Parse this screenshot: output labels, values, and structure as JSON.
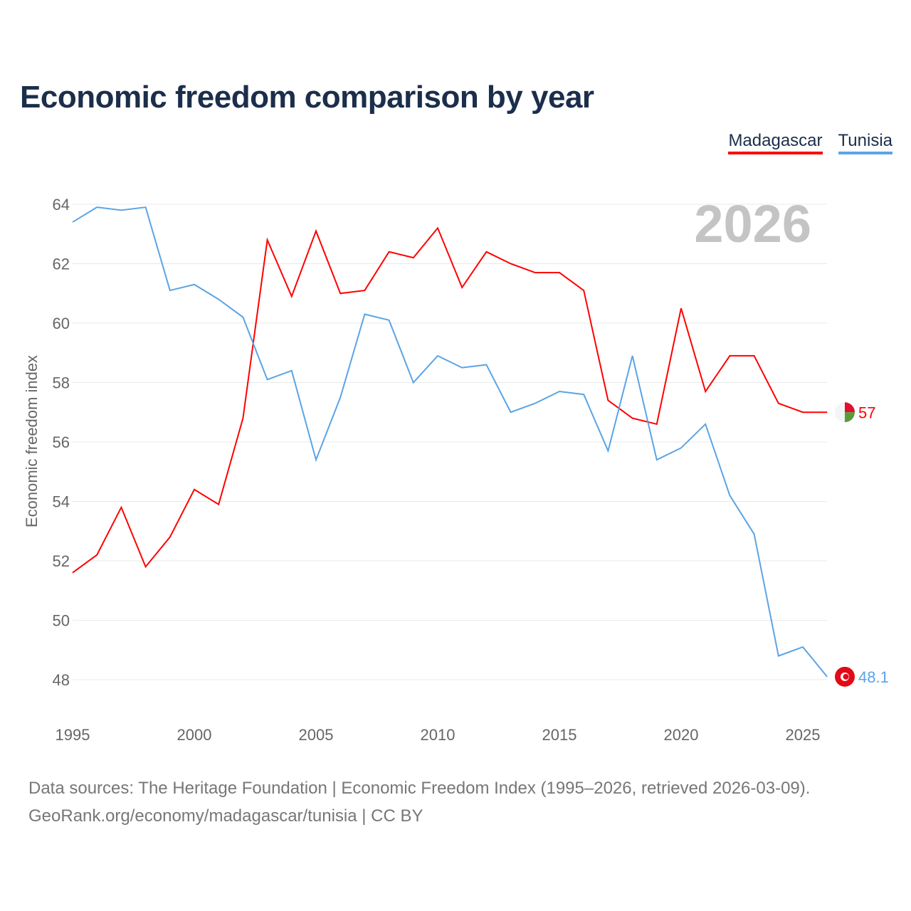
{
  "title": "Economic freedom comparison by year",
  "source_line1": "Data sources: The Heritage Foundation | Economic Freedom Index (1995–2026, retrieved 2026-03-09).",
  "source_line2": "GeoRank.org/economy/madagascar/tunisia | CC BY",
  "chart_data": {
    "type": "line",
    "title": "Economic freedom comparison by year",
    "ylabel": "Economic freedom index",
    "xlabel": "",
    "year_label": "2026",
    "xlim": [
      1995,
      2026
    ],
    "ylim": [
      47,
      64.5
    ],
    "xticks": [
      "1995",
      "2000",
      "2005",
      "2010",
      "2015",
      "2020",
      "2025"
    ],
    "yticks": [
      "48",
      "50",
      "52",
      "54",
      "56",
      "58",
      "60",
      "62",
      "64"
    ],
    "grid": true,
    "legend_position": "top-right",
    "x": [
      1995,
      1996,
      1997,
      1998,
      1999,
      2000,
      2001,
      2002,
      2003,
      2004,
      2005,
      2006,
      2007,
      2008,
      2009,
      2010,
      2011,
      2012,
      2013,
      2014,
      2015,
      2016,
      2017,
      2018,
      2019,
      2020,
      2021,
      2022,
      2023,
      2024,
      2025,
      2026
    ],
    "series": [
      {
        "name": "Madagascar",
        "color": "#ff0000",
        "end_label": "57",
        "values": [
          51.6,
          52.2,
          53.8,
          51.8,
          52.8,
          54.4,
          53.9,
          56.8,
          62.8,
          60.9,
          63.1,
          61.0,
          61.1,
          62.4,
          62.2,
          63.2,
          61.2,
          62.4,
          62.0,
          61.7,
          61.7,
          61.1,
          57.4,
          56.8,
          56.6,
          60.5,
          57.7,
          58.9,
          58.9,
          57.3,
          57.0,
          57.0
        ]
      },
      {
        "name": "Tunisia",
        "color": "#5ba4e6",
        "end_label": "48.1",
        "values": [
          63.4,
          63.9,
          63.8,
          63.9,
          61.1,
          61.3,
          60.8,
          60.2,
          58.1,
          58.4,
          55.4,
          57.5,
          60.3,
          60.1,
          58.0,
          58.9,
          58.5,
          58.6,
          57.0,
          57.3,
          57.7,
          57.6,
          55.7,
          58.9,
          55.4,
          55.8,
          56.6,
          54.2,
          52.9,
          48.8,
          49.1,
          48.1
        ]
      }
    ]
  }
}
